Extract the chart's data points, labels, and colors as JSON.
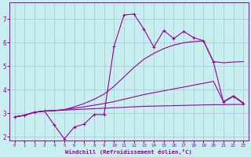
{
  "xlabel": "Windchill (Refroidissement éolien,°C)",
  "background_color": "#c8eef0",
  "grid_color": "#a0c8d0",
  "line_color": "#990099",
  "x_values": [
    0,
    1,
    2,
    3,
    4,
    5,
    6,
    7,
    8,
    9,
    10,
    11,
    12,
    13,
    14,
    15,
    16,
    17,
    18,
    19,
    20,
    21,
    22,
    23
  ],
  "line1_flat": [
    2.85,
    2.92,
    3.05,
    3.1,
    3.12,
    3.14,
    3.16,
    3.18,
    3.2,
    3.22,
    3.24,
    3.26,
    3.28,
    3.3,
    3.31,
    3.32,
    3.33,
    3.34,
    3.35,
    3.36,
    3.37,
    3.37,
    3.38,
    3.38
  ],
  "line2_gentle": [
    2.85,
    2.92,
    3.05,
    3.1,
    3.12,
    3.16,
    3.22,
    3.28,
    3.35,
    3.42,
    3.5,
    3.6,
    3.7,
    3.8,
    3.88,
    3.96,
    4.04,
    4.12,
    4.2,
    4.28,
    4.36,
    3.5,
    3.75,
    3.45
  ],
  "line3_upper": [
    2.85,
    2.92,
    3.05,
    3.1,
    3.12,
    3.16,
    3.28,
    3.42,
    3.6,
    3.82,
    4.15,
    4.55,
    4.95,
    5.3,
    5.55,
    5.75,
    5.9,
    6.0,
    6.05,
    6.08,
    5.2,
    5.15,
    5.18,
    5.2
  ],
  "line4_jagged": [
    2.85,
    2.92,
    3.05,
    3.1,
    2.5,
    1.92,
    2.42,
    2.55,
    2.95,
    2.95,
    5.85,
    7.18,
    7.22,
    6.58,
    5.82,
    6.52,
    6.18,
    6.48,
    6.22,
    6.08,
    5.18,
    3.48,
    3.72,
    3.42
  ],
  "xlim": [
    -0.5,
    23.5
  ],
  "ylim": [
    1.85,
    7.7
  ],
  "yticks": [
    2,
    3,
    4,
    5,
    6,
    7
  ],
  "xticks": [
    0,
    1,
    2,
    3,
    4,
    5,
    6,
    7,
    8,
    9,
    10,
    11,
    12,
    13,
    14,
    15,
    16,
    17,
    18,
    19,
    20,
    21,
    22,
    23
  ]
}
